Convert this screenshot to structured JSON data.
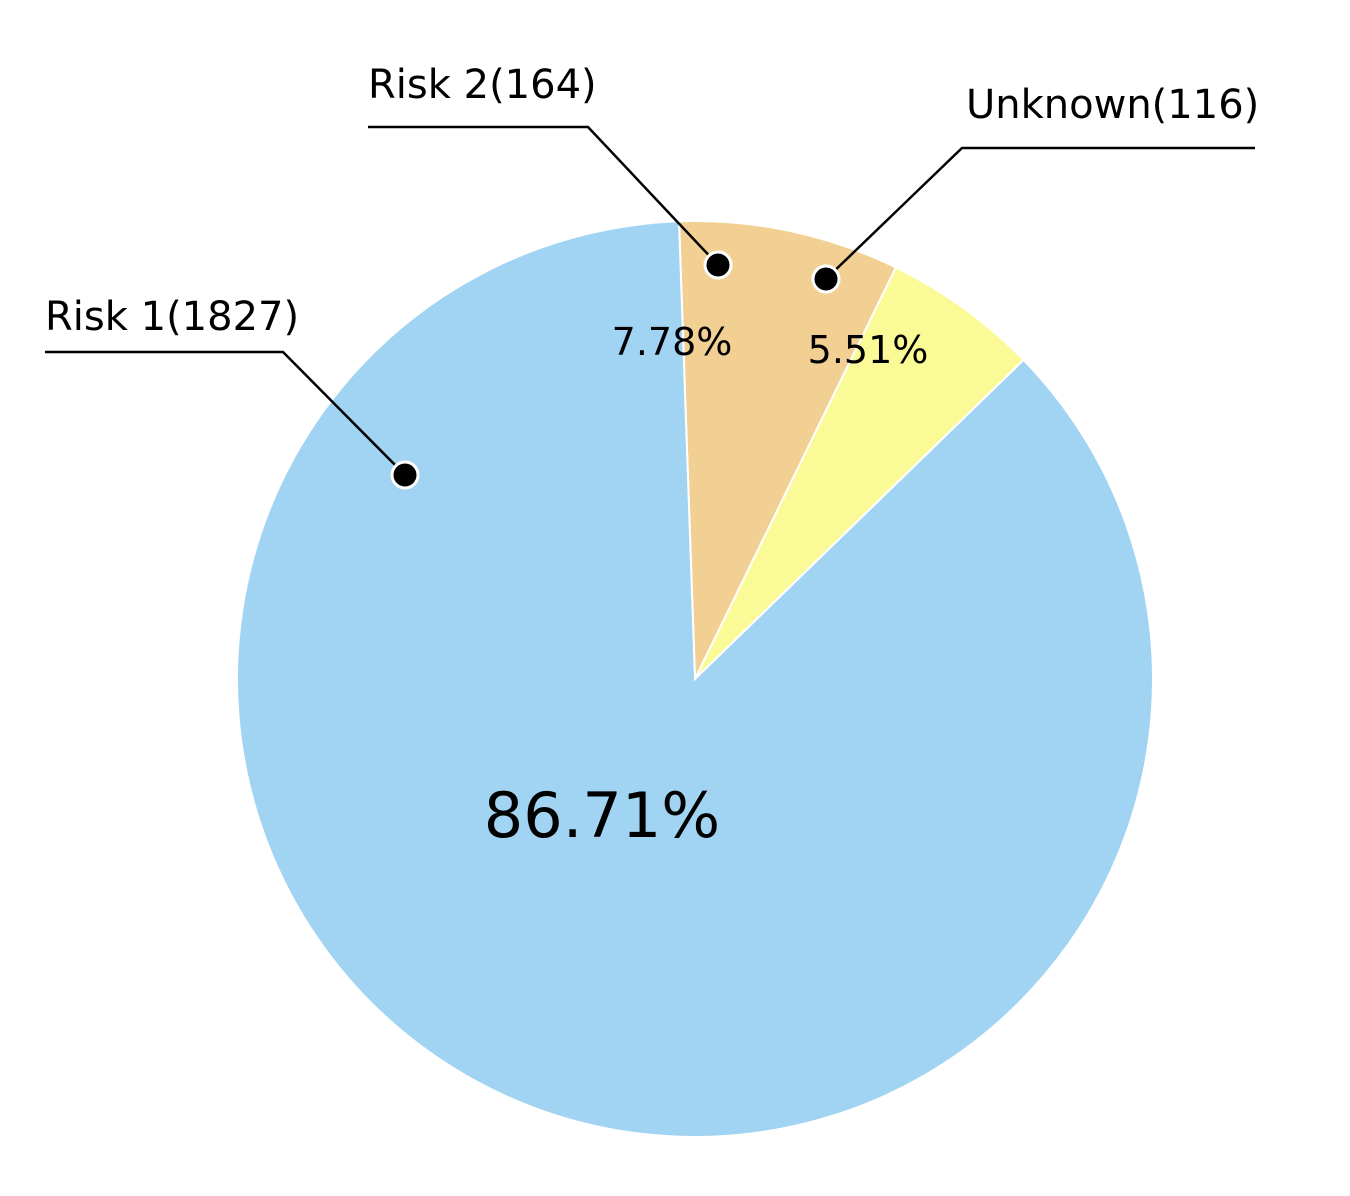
{
  "chart_data": {
    "type": "pie",
    "slices": [
      {
        "name": "Risk 1",
        "count": 1827,
        "label": "Risk 1(1827)",
        "percent_label": "86.71%",
        "color": "#A1D3F2"
      },
      {
        "name": "Risk 2",
        "count": 164,
        "label": "Risk 2(164)",
        "percent_label": "7.78%",
        "color": "#F2CF93"
      },
      {
        "name": "Unknown",
        "count": 116,
        "label": "Unknown(116)",
        "percent_label": "5.51%",
        "color": "#FAFA96"
      }
    ],
    "title": "",
    "legend": "leader-line labels"
  }
}
